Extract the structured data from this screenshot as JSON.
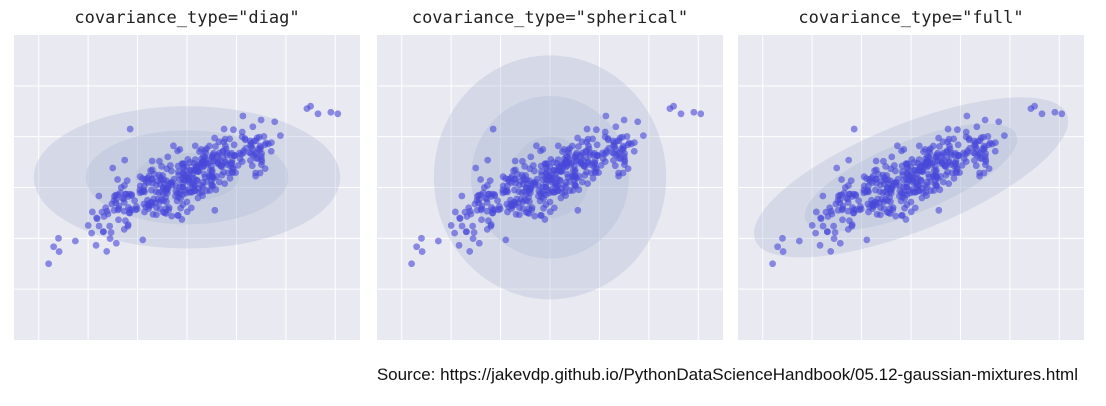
{
  "colors": {
    "plot_background": "#e9e9f1",
    "grid": "#ffffff",
    "points": "#4747d9",
    "ellipse_fill": "#aab6d3"
  },
  "caption": "Source: https://jakevdp.github.io/PythonDataScienceHandbook/05.12-gaussian-mixtures.html",
  "chart_data": [
    {
      "type": "scatter",
      "title": "covariance_type=\"diag\"",
      "xlabel": "",
      "ylabel": "",
      "xlim": [
        -3.5,
        3.5
      ],
      "ylim": [
        -3,
        3
      ],
      "grid": true,
      "tick_labels_shown": false,
      "series": [
        {
          "points": "random_sample",
          "n": 400,
          "mean": [
            0.0,
            0.2
          ],
          "cov": [
            [
              1.1,
              0.45
            ],
            [
              0.45,
              0.28
            ]
          ],
          "outliers": [
            [
              2.5,
              1.6
            ],
            [
              2.65,
              1.45
            ],
            [
              3.05,
              1.45
            ],
            [
              -2.8,
              -1.5
            ],
            [
              -1.15,
              1.15
            ],
            [
              -2.6,
              -1.0
            ]
          ]
        }
      ],
      "components": [
        {
          "center": [
            0.0,
            0.2
          ],
          "width": 6.2,
          "height": 2.8,
          "angle_deg": 0
        },
        {
          "center": [
            0.0,
            0.2
          ],
          "width": 4.1,
          "height": 1.85,
          "angle_deg": 0
        },
        {
          "center": [
            0.0,
            0.2
          ],
          "width": 2.1,
          "height": 0.95,
          "angle_deg": 0
        }
      ]
    },
    {
      "type": "scatter",
      "title": "covariance_type=\"spherical\"",
      "xlabel": "",
      "ylabel": "",
      "xlim": [
        -3.5,
        3.5
      ],
      "ylim": [
        -3,
        3
      ],
      "grid": true,
      "tick_labels_shown": false,
      "series": [
        {
          "points": "random_sample",
          "n": 400,
          "mean": [
            0.0,
            0.2
          ],
          "cov": [
            [
              1.1,
              0.45
            ],
            [
              0.45,
              0.28
            ]
          ],
          "outliers": [
            [
              2.5,
              1.6
            ],
            [
              2.65,
              1.45
            ],
            [
              3.05,
              1.45
            ],
            [
              -2.8,
              -1.5
            ],
            [
              -1.15,
              1.15
            ],
            [
              -2.6,
              -1.0
            ]
          ]
        }
      ],
      "components": [
        {
          "center": [
            0.0,
            0.2
          ],
          "width": 4.7,
          "height": 4.8,
          "angle_deg": 0
        },
        {
          "center": [
            0.0,
            0.2
          ],
          "width": 3.2,
          "height": 3.2,
          "angle_deg": 0
        },
        {
          "center": [
            0.0,
            0.2
          ],
          "width": 1.6,
          "height": 1.6,
          "angle_deg": 0
        }
      ]
    },
    {
      "type": "scatter",
      "title": "covariance_type=\"full\"",
      "xlabel": "",
      "ylabel": "",
      "xlim": [
        -3.5,
        3.5
      ],
      "ylim": [
        -3,
        3
      ],
      "grid": true,
      "tick_labels_shown": false,
      "series": [
        {
          "points": "random_sample",
          "n": 400,
          "mean": [
            0.0,
            0.2
          ],
          "cov": [
            [
              1.1,
              0.45
            ],
            [
              0.45,
              0.28
            ]
          ],
          "outliers": [
            [
              2.5,
              1.6
            ],
            [
              2.65,
              1.45
            ],
            [
              3.05,
              1.45
            ],
            [
              -2.8,
              -1.5
            ],
            [
              -1.15,
              1.15
            ],
            [
              -2.6,
              -1.0
            ]
          ]
        }
      ],
      "components": [
        {
          "center": [
            0.0,
            0.2
          ],
          "width": 6.8,
          "height": 2.1,
          "angle_deg": 22
        },
        {
          "center": [
            0.0,
            0.2
          ],
          "width": 4.6,
          "height": 1.4,
          "angle_deg": 22
        },
        {
          "center": [
            0.0,
            0.2
          ],
          "width": 2.3,
          "height": 0.7,
          "angle_deg": 22
        }
      ]
    }
  ]
}
